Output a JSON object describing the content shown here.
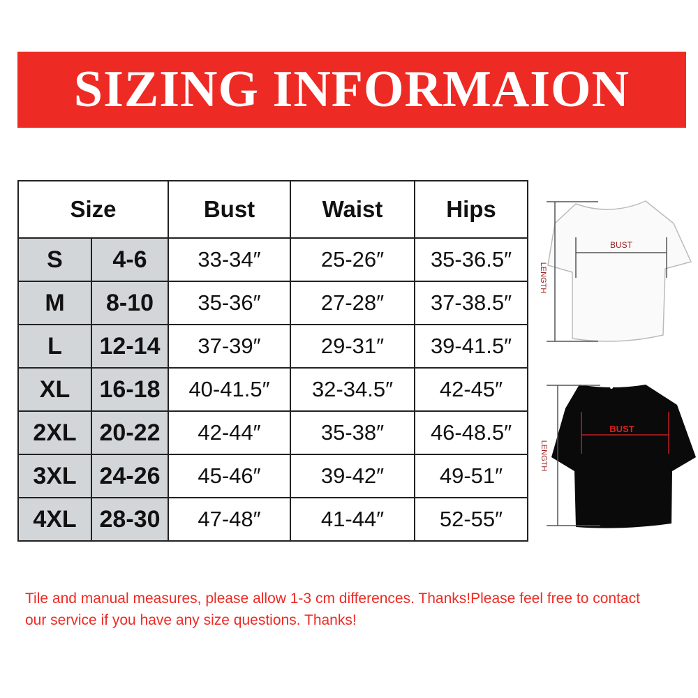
{
  "title": "SIZING INFORMAION",
  "table": {
    "headers": [
      "Size",
      "Bust",
      "Waist",
      "Hips"
    ],
    "rows": [
      {
        "size": "S",
        "us": "4-6",
        "bust": "33-34″",
        "waist": "25-26″",
        "hips": "35-36.5″"
      },
      {
        "size": "M",
        "us": "8-10",
        "bust": "35-36″",
        "waist": "27-28″",
        "hips": "37-38.5″"
      },
      {
        "size": "L",
        "us": "12-14",
        "bust": "37-39″",
        "waist": "29-31″",
        "hips": "39-41.5″"
      },
      {
        "size": "XL",
        "us": "16-18",
        "bust": "40-41.5″",
        "waist": "32-34.5″",
        "hips": "42-45″"
      },
      {
        "size": "2XL",
        "us": "20-22",
        "bust": "42-44″",
        "waist": "35-38″",
        "hips": "46-48.5″"
      },
      {
        "size": "3XL",
        "us": "24-26",
        "bust": "45-46″",
        "waist": "39-42″",
        "hips": "49-51″"
      },
      {
        "size": "4XL",
        "us": "28-30",
        "bust": "47-48″",
        "waist": "41-44″",
        "hips": "52-55″"
      }
    ]
  },
  "diagrams": {
    "bust_label": "BUST",
    "length_label": "LENGTH"
  },
  "note": "Tile and manual measures, please allow 1-3 cm differences. Thanks!Please feel free to contact our service if you have any size questions. Thanks!",
  "colors": {
    "banner": "#ee2a24",
    "size_cell": "#d3d6d9",
    "note": "#ee2a24"
  }
}
